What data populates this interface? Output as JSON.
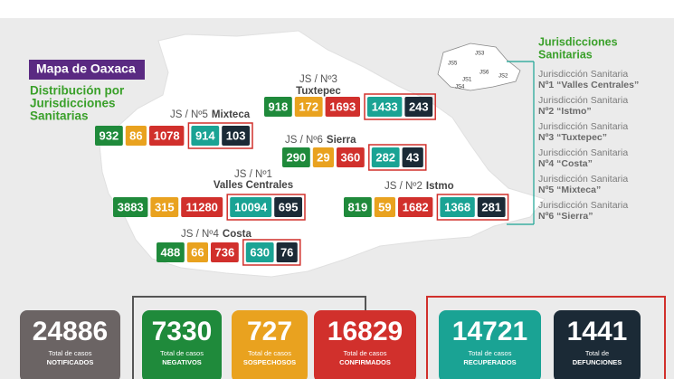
{
  "header": {
    "badge": "Mapa de Oaxaca",
    "subtitle": [
      "Distribución por",
      "Jurisdicciones",
      "Sanitarias"
    ]
  },
  "jurisdictions": [
    {
      "label": "JS / Nº3",
      "name": "Tuxtepec",
      "values": [
        918,
        172,
        1693,
        1433,
        243
      ]
    },
    {
      "label": "JS / Nº5",
      "name": "Mixteca",
      "values": [
        932,
        86,
        1078,
        914,
        103
      ]
    },
    {
      "label": "JS / Nº6",
      "name": "Sierra",
      "values": [
        290,
        29,
        360,
        282,
        43
      ]
    },
    {
      "label": "JS / Nº1",
      "name": "Valles Centrales",
      "values": [
        3883,
        315,
        11280,
        10094,
        695
      ]
    },
    {
      "label": "JS / Nº2",
      "name": "Istmo",
      "values": [
        819,
        59,
        1682,
        1368,
        281
      ]
    },
    {
      "label": "JS / Nº4",
      "name": "Costa",
      "values": [
        488,
        66,
        736,
        630,
        76
      ]
    }
  ],
  "minimap": {
    "labels": [
      "JS5",
      "JS3",
      "JS6",
      "JS1",
      "JS4",
      "JS2"
    ]
  },
  "legend": {
    "title": [
      "Jurisdicciones",
      "Sanitarias"
    ],
    "items": [
      {
        "line1": "Jurisdicción Sanitaria",
        "line2": "Nº1 “Valles Centrales”"
      },
      {
        "line1": "Jurisdicción Sanitaria",
        "line2": "Nº2 “Istmo”"
      },
      {
        "line1": "Jurisdicción Sanitaria",
        "line2": "Nº3 “Tuxtepec”"
      },
      {
        "line1": "Jurisdicción Sanitaria",
        "line2": "Nº4 “Costa”"
      },
      {
        "line1": "Jurisdicción Sanitaria",
        "line2": "Nº5 “Mixteca”"
      },
      {
        "line1": "Jurisdicción Sanitaria",
        "line2": "Nº6 “Sierra”"
      }
    ]
  },
  "totals": [
    {
      "value": 24886,
      "caption": "Total de casos",
      "kind": "NOTIFICADOS"
    },
    {
      "value": 7330,
      "caption": "Total de casos",
      "kind": "NEGATIVOS"
    },
    {
      "value": 727,
      "caption": "Total de casos",
      "kind": "SOSPECHOSOS"
    },
    {
      "value": 16829,
      "caption": "Total de casos",
      "kind": "CONFIRMADOS"
    },
    {
      "value": 14721,
      "caption": "Total de casos",
      "kind": "RECUPERADOS"
    },
    {
      "value": 1441,
      "caption": "Total de",
      "kind": "DEFUNCIONES"
    }
  ]
}
